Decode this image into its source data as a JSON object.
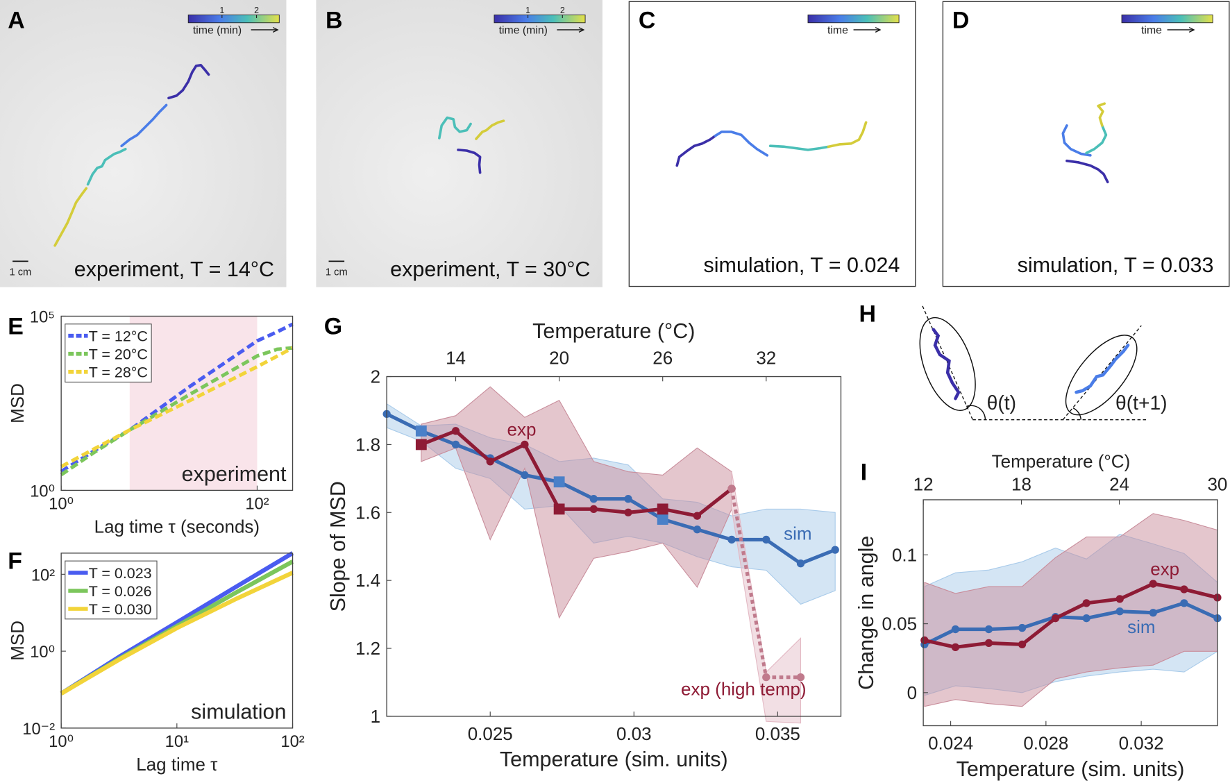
{
  "panels": {
    "A": {
      "label": "A",
      "caption": "experiment, T = 14°C",
      "scale_bar": "1 cm",
      "colorbar": {
        "label": "time (min)",
        "ticks": [
          "1",
          "2"
        ]
      }
    },
    "B": {
      "label": "B",
      "caption": "experiment, T = 30°C",
      "scale_bar": "1 cm",
      "colorbar": {
        "label": "time (min)",
        "ticks": [
          "1",
          "2"
        ]
      }
    },
    "C": {
      "label": "C",
      "caption": "simulation, T = 0.024",
      "colorbar": {
        "label": "time"
      }
    },
    "D": {
      "label": "D",
      "caption": "simulation, T = 0.033",
      "colorbar": {
        "label": "time"
      }
    },
    "H": {
      "label": "H",
      "theta_t": "θ(t)",
      "theta_t1": "θ(t+1)"
    }
  },
  "colors": {
    "time_start": "#3b2fa8",
    "time_mid1": "#4a7de8",
    "time_mid2": "#4bbfb8",
    "time_end": "#d4cc3a",
    "sim": "#3a6cb4",
    "exp": "#8e1b35",
    "exp_high": "#c07a8c"
  },
  "chart_data": [
    {
      "panel": "E",
      "type": "line",
      "xscale": "log",
      "yscale": "log",
      "xlim": [
        1,
        230
      ],
      "ylim": [
        1,
        100000
      ],
      "xticks": [
        {
          "value": 1,
          "label": "10⁰"
        },
        {
          "value": 100,
          "label": "10²"
        }
      ],
      "yticks": [
        {
          "value": 1,
          "label": "10⁰"
        },
        {
          "value": 100000,
          "label": "10⁵"
        }
      ],
      "xlabel": "Lag time τ (seconds)",
      "ylabel": "MSD",
      "annotation": "experiment",
      "shaded_region": [
        5,
        100
      ],
      "legend": "top-left",
      "grid": false,
      "series": [
        {
          "name": "T = 12°C",
          "color": "#4a5cf0",
          "style": "dashed",
          "x": [
            1,
            2.2,
            5,
            21,
            100,
            160,
            230
          ],
          "y": [
            3.5,
            14,
            54,
            1000,
            19500,
            35500,
            59000
          ]
        },
        {
          "name": "T = 20°C",
          "color": "#7cc65c",
          "style": "dashed",
          "x": [
            1,
            2.2,
            5,
            21,
            100,
            160,
            230
          ],
          "y": [
            2.8,
            12.6,
            54,
            590,
            7200,
            11200,
            12300
          ]
        },
        {
          "name": "T = 28°C",
          "color": "#f2d43a",
          "style": "dashed",
          "x": [
            1,
            2.2,
            5,
            21,
            100,
            160,
            230
          ],
          "y": [
            4.8,
            15.8,
            54,
            390,
            3550,
            7100,
            12300
          ]
        }
      ]
    },
    {
      "panel": "F",
      "type": "line",
      "xscale": "log",
      "yscale": "log",
      "xlim": [
        1,
        100
      ],
      "ylim": [
        0.01,
        355
      ],
      "xticks": [
        {
          "value": 1,
          "label": "10⁰"
        },
        {
          "value": 10,
          "label": "10¹"
        },
        {
          "value": 100,
          "label": "10²"
        }
      ],
      "yticks": [
        {
          "value": 0.01,
          "label": "10⁻²"
        },
        {
          "value": 1,
          "label": "10⁰"
        },
        {
          "value": 100,
          "label": "10²"
        }
      ],
      "xlabel": "Lag time τ",
      "ylabel": "MSD",
      "annotation": "simulation",
      "legend": "top-left",
      "grid": false,
      "series": [
        {
          "name": "T = 0.023",
          "color": "#4a5cf0",
          "style": "solid",
          "x": [
            1,
            3.16,
            10,
            31.6,
            100
          ],
          "y": [
            0.079,
            0.71,
            5.6,
            45,
            355
          ]
        },
        {
          "name": "T = 0.026",
          "color": "#7cc65c",
          "style": "solid",
          "x": [
            1,
            3.16,
            10,
            31.6,
            100
          ],
          "y": [
            0.079,
            0.63,
            4.5,
            32,
            214
          ]
        },
        {
          "name": "T = 0.030",
          "color": "#f2d43a",
          "style": "solid",
          "x": [
            1,
            3.16,
            10,
            31.6,
            100
          ],
          "y": [
            0.079,
            0.6,
            4.0,
            22,
            110
          ]
        }
      ]
    },
    {
      "panel": "G",
      "type": "line",
      "xlim": [
        0.0214,
        0.0372
      ],
      "ylim": [
        1,
        2
      ],
      "xticks": [
        {
          "value": 0.025,
          "label": "0.025"
        },
        {
          "value": 0.03,
          "label": "0.03"
        },
        {
          "value": 0.035,
          "label": "0.035"
        }
      ],
      "yticks": [
        {
          "value": 1,
          "label": "1"
        },
        {
          "value": 1.2,
          "label": "1.2"
        },
        {
          "value": 1.4,
          "label": "1.4"
        },
        {
          "value": 1.6,
          "label": "1.6"
        },
        {
          "value": 1.8,
          "label": "1.8"
        },
        {
          "value": 2,
          "label": "2"
        }
      ],
      "top_xlabel": "Temperature (°C)",
      "top_xticks": [
        {
          "value": 0.0238,
          "label": "14"
        },
        {
          "value": 0.0274,
          "label": "20"
        },
        {
          "value": 0.031,
          "label": "26"
        },
        {
          "value": 0.0346,
          "label": "32"
        }
      ],
      "xlabel": "Temperature (sim. units)",
      "ylabel": "Slope of MSD",
      "grid": false,
      "series": [
        {
          "name": "sim",
          "color": "#3a6cb4",
          "band_color": "#a9cbea",
          "x": [
            0.0214,
            0.0226,
            0.0238,
            0.025,
            0.0262,
            0.0274,
            0.0286,
            0.0298,
            0.031,
            0.0322,
            0.0334,
            0.0346,
            0.0358,
            0.037
          ],
          "y": [
            1.89,
            1.84,
            1.8,
            1.76,
            1.71,
            1.69,
            1.64,
            1.64,
            1.58,
            1.55,
            1.52,
            1.52,
            1.45,
            1.49
          ],
          "upper": [
            1.92,
            1.855,
            1.86,
            1.82,
            1.8,
            1.75,
            1.76,
            1.74,
            1.64,
            1.63,
            1.59,
            1.61,
            1.61,
            1.6
          ],
          "lower": [
            1.85,
            1.81,
            1.73,
            1.7,
            1.61,
            1.62,
            1.51,
            1.53,
            1.51,
            1.47,
            1.44,
            1.43,
            1.33,
            1.37
          ],
          "square_markers": [
            1,
            5,
            8
          ]
        },
        {
          "name": "exp",
          "color": "#8e1b35",
          "band_color": "#c98e9c",
          "x": [
            0.0226,
            0.0238,
            0.025,
            0.0262,
            0.0274,
            0.0286,
            0.0298,
            0.031,
            0.0322,
            0.0334
          ],
          "y": [
            1.8,
            1.84,
            1.75,
            1.8,
            1.61,
            1.61,
            1.6,
            1.61,
            1.59,
            1.67
          ],
          "upper": [
            1.86,
            1.885,
            1.97,
            1.88,
            1.93,
            1.75,
            1.72,
            1.71,
            1.79,
            1.72
          ],
          "lower": [
            1.75,
            1.79,
            1.52,
            1.73,
            1.29,
            1.465,
            1.485,
            1.51,
            1.38,
            1.61
          ],
          "square_markers": [
            0,
            4,
            7
          ]
        },
        {
          "name": "exp (high temp)",
          "color": "#c07a8c",
          "band_color": "#e3b9c4",
          "style": "dotted",
          "x": [
            0.0334,
            0.0346,
            0.0358
          ],
          "y": [
            1.67,
            1.115,
            1.115
          ],
          "upper": [
            1.72,
            1.13,
            1.23
          ],
          "lower": [
            1.61,
            0.985,
            0.98
          ]
        }
      ]
    },
    {
      "panel": "I",
      "type": "line",
      "xlim": [
        0.02285,
        0.0352
      ],
      "ylim": [
        -0.024,
        0.14
      ],
      "xticks": [
        {
          "value": 0.024,
          "label": "0.024"
        },
        {
          "value": 0.028,
          "label": "0.028"
        },
        {
          "value": 0.032,
          "label": "0.032"
        }
      ],
      "yticks": [
        {
          "value": 0,
          "label": "0"
        },
        {
          "value": 0.05,
          "label": "0.05"
        },
        {
          "value": 0.1,
          "label": "0.1"
        }
      ],
      "top_xlabel": "Temperature (°C)",
      "top_xticks": [
        {
          "value": 0.02285,
          "label": "12"
        },
        {
          "value": 0.02697,
          "label": "18"
        },
        {
          "value": 0.03108,
          "label": "24"
        },
        {
          "value": 0.0352,
          "label": "30"
        }
      ],
      "xlabel": "Temperature (sim. units)",
      "ylabel": "Change in angle",
      "grid": false,
      "series": [
        {
          "name": "sim",
          "color": "#3a6cb4",
          "band_color": "#a9cbea",
          "x": [
            0.0229,
            0.0242,
            0.0256,
            0.027,
            0.0284,
            0.0297,
            0.0311,
            0.0325,
            0.0338,
            0.0352
          ],
          "y": [
            0.035,
            0.046,
            0.046,
            0.047,
            0.055,
            0.054,
            0.059,
            0.058,
            0.065,
            0.054
          ],
          "upper": [
            0.077,
            0.087,
            0.089,
            0.095,
            0.105,
            0.097,
            0.115,
            0.108,
            0.101,
            0.08
          ],
          "lower": [
            -0.002,
            0.005,
            0.003,
            0.0,
            0.008,
            0.012,
            0.015,
            0.017,
            0.015,
            0.03
          ]
        },
        {
          "name": "exp",
          "color": "#8e1b35",
          "band_color": "#c98e9c",
          "x": [
            0.0229,
            0.0242,
            0.0256,
            0.027,
            0.0284,
            0.0297,
            0.0311,
            0.0325,
            0.0338,
            0.0352
          ],
          "y": [
            0.038,
            0.033,
            0.036,
            0.035,
            0.054,
            0.065,
            0.068,
            0.079,
            0.075,
            0.069
          ],
          "upper": [
            0.08,
            0.072,
            0.077,
            0.077,
            0.098,
            0.113,
            0.113,
            0.13,
            0.125,
            0.118
          ],
          "lower": [
            -0.01,
            -0.005,
            -0.008,
            -0.01,
            0.01,
            0.015,
            0.018,
            0.02,
            0.03,
            0.03
          ]
        }
      ]
    }
  ]
}
